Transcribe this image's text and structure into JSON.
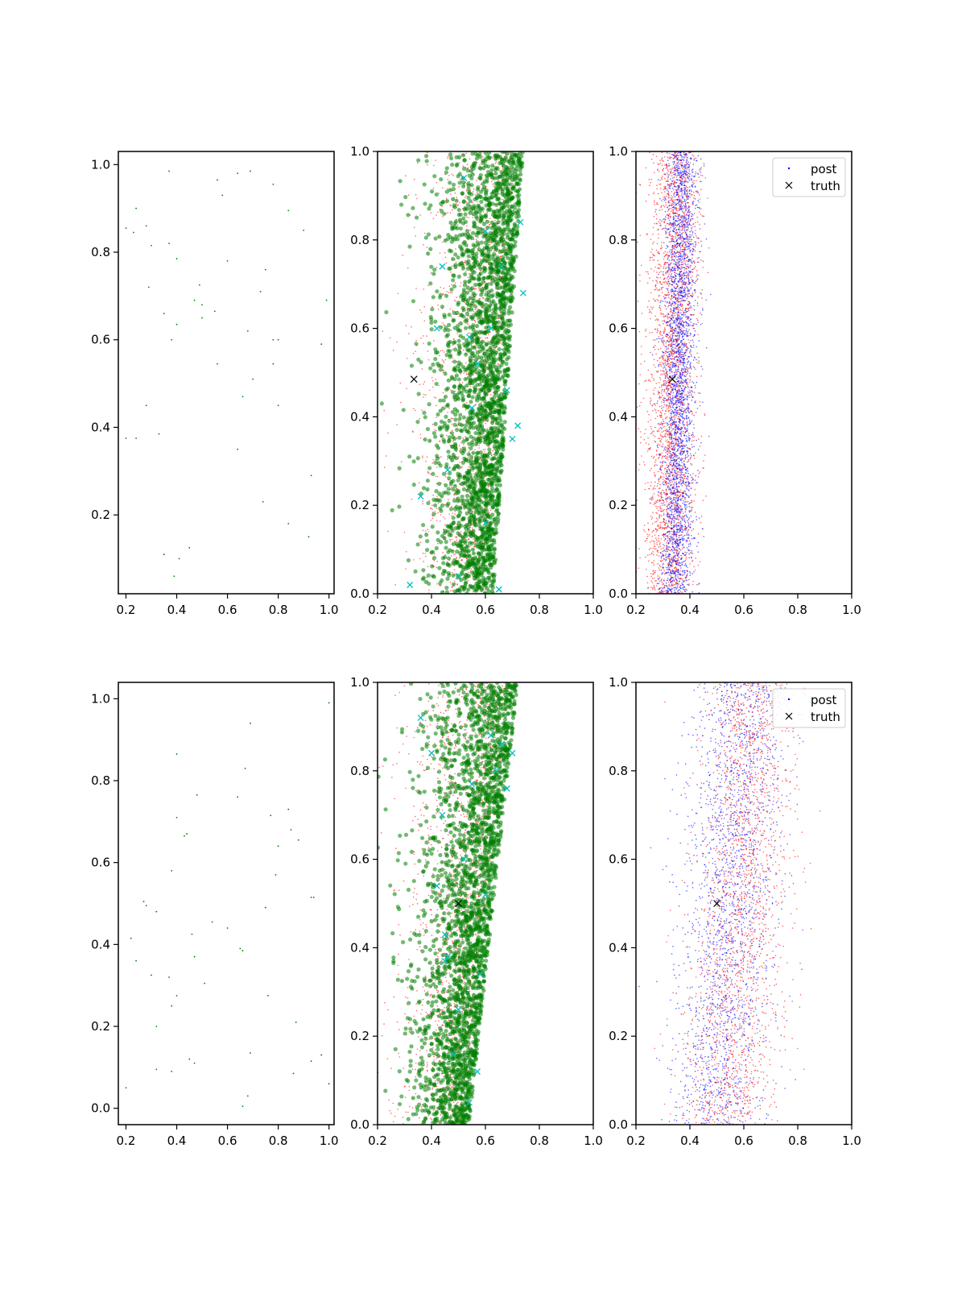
{
  "figure": {
    "background": "#ffffff",
    "colors": {
      "prior": "#008000",
      "samples": "#008000",
      "draws": "#ff0000",
      "post": "#0000ff",
      "obs": "#00bfbf",
      "truth": "#000000"
    }
  },
  "chart_data": [
    {
      "type": "scatter",
      "row": 0,
      "col": 0,
      "xlim": [
        0.17,
        1.02
      ],
      "ylim": [
        0.02,
        1.03
      ],
      "xticks": [
        "0.2",
        "0.4",
        "0.6",
        "0.8",
        "1.0"
      ],
      "yticks": [
        "0.2",
        "0.4",
        "0.6",
        "0.8",
        "1.0"
      ],
      "xtick_values": [
        0.2,
        0.4,
        0.6,
        0.8,
        1.0
      ],
      "ytick_values": [
        0.2,
        0.4,
        0.6,
        0.8,
        1.0
      ],
      "series": [
        {
          "role": "prior",
          "points": [
            [
              0.2,
              0.855
            ],
            [
              0.24,
              0.9
            ],
            [
              0.23,
              0.845
            ],
            [
              0.28,
              0.86
            ],
            [
              0.3,
              0.815
            ],
            [
              0.29,
              0.72
            ],
            [
              0.37,
              0.985
            ],
            [
              0.37,
              0.82
            ],
            [
              0.4,
              0.785
            ],
            [
              0.56,
              0.965
            ],
            [
              0.58,
              0.93
            ],
            [
              0.64,
              0.98
            ],
            [
              0.69,
              0.985
            ],
            [
              0.78,
              0.955
            ],
            [
              0.84,
              0.895
            ],
            [
              0.9,
              0.85
            ],
            [
              0.35,
              0.66
            ],
            [
              0.4,
              0.635
            ],
            [
              0.38,
              0.6
            ],
            [
              0.49,
              0.725
            ],
            [
              0.47,
              0.69
            ],
            [
              0.5,
              0.68
            ],
            [
              0.55,
              0.665
            ],
            [
              0.5,
              0.65
            ],
            [
              0.6,
              0.78
            ],
            [
              0.75,
              0.76
            ],
            [
              0.73,
              0.71
            ],
            [
              0.99,
              0.69
            ],
            [
              0.68,
              0.62
            ],
            [
              0.78,
              0.6
            ],
            [
              0.8,
              0.6
            ],
            [
              0.97,
              0.59
            ],
            [
              0.56,
              0.545
            ],
            [
              0.78,
              0.545
            ],
            [
              0.7,
              0.51
            ],
            [
              0.66,
              0.47
            ],
            [
              0.28,
              0.45
            ],
            [
              0.8,
              0.45
            ],
            [
              0.2,
              0.375
            ],
            [
              0.24,
              0.375
            ],
            [
              0.33,
              0.385
            ],
            [
              0.64,
              0.35
            ],
            [
              0.93,
              0.29
            ],
            [
              0.74,
              0.23
            ],
            [
              0.84,
              0.18
            ],
            [
              0.92,
              0.15
            ],
            [
              0.35,
              0.11
            ],
            [
              0.45,
              0.125
            ],
            [
              0.41,
              0.1
            ],
            [
              0.39,
              0.06
            ]
          ]
        }
      ]
    },
    {
      "type": "scatter",
      "row": 0,
      "col": 1,
      "xlim": [
        0.2,
        1.0
      ],
      "ylim": [
        0.0,
        1.0
      ],
      "xticks": [
        "0.2",
        "0.4",
        "0.6",
        "0.8",
        "1.0"
      ],
      "yticks": [
        "0.0",
        "0.2",
        "0.4",
        "0.6",
        "0.8",
        "1.0"
      ],
      "xtick_values": [
        0.2,
        0.4,
        0.6,
        0.8,
        1.0
      ],
      "ytick_values": [
        0.0,
        0.2,
        0.4,
        0.6,
        0.8,
        1.0
      ],
      "cloud": {
        "n_samples": 2600,
        "n_draws": 1600,
        "center_at_y0": 0.55,
        "center_at_y1": 0.66,
        "spread_at_y0": 0.11,
        "spread_at_y1": 0.14
      },
      "obs_marks": [
        [
          0.32,
          0.02
        ],
        [
          0.36,
          0.22
        ],
        [
          0.42,
          0.6
        ],
        [
          0.44,
          0.74
        ],
        [
          0.46,
          0.28
        ],
        [
          0.5,
          0.04
        ],
        [
          0.52,
          0.94
        ],
        [
          0.54,
          0.58
        ],
        [
          0.57,
          0.52
        ],
        [
          0.6,
          0.16
        ],
        [
          0.62,
          0.6
        ],
        [
          0.65,
          0.01
        ],
        [
          0.68,
          0.46
        ],
        [
          0.7,
          0.35
        ],
        [
          0.72,
          0.38
        ],
        [
          0.73,
          0.84
        ],
        [
          0.74,
          0.68
        ],
        [
          0.6,
          0.82
        ],
        [
          0.55,
          0.42
        ],
        [
          0.66,
          0.74
        ]
      ],
      "truth": [
        0.335,
        0.485
      ]
    },
    {
      "type": "scatter",
      "row": 0,
      "col": 2,
      "xlim": [
        0.2,
        1.0
      ],
      "ylim": [
        0.0,
        1.0
      ],
      "xticks": [
        "0.2",
        "0.4",
        "0.6",
        "0.8",
        "1.0"
      ],
      "yticks": [
        "0.0",
        "0.2",
        "0.4",
        "0.6",
        "0.8",
        "1.0"
      ],
      "xtick_values": [
        0.2,
        0.4,
        0.6,
        0.8,
        1.0
      ],
      "ytick_values": [
        0.0,
        0.2,
        0.4,
        0.6,
        0.8,
        1.0
      ],
      "cloud": {
        "n_post": 2800,
        "n_draws": 2800,
        "post_center_at_y0": 0.35,
        "post_center_at_y1": 0.37,
        "post_spread": 0.03,
        "draws_center_at_y0": 0.32,
        "draws_center_at_y1": 0.35,
        "draws_spread": 0.045
      },
      "truth": [
        0.335,
        0.485
      ],
      "legend": {
        "position": "top-right",
        "entries": [
          "post",
          "truth"
        ]
      }
    },
    {
      "type": "scatter",
      "row": 1,
      "col": 0,
      "xlim": [
        0.17,
        1.02
      ],
      "ylim": [
        -0.04,
        1.04
      ],
      "xticks": [
        "0.2",
        "0.4",
        "0.6",
        "0.8",
        "1.0"
      ],
      "yticks": [
        "0.0",
        "0.2",
        "0.4",
        "0.6",
        "0.8",
        "1.0"
      ],
      "xtick_values": [
        0.2,
        0.4,
        0.6,
        0.8,
        1.0
      ],
      "ytick_values": [
        0.0,
        0.2,
        0.4,
        0.6,
        0.8,
        1.0
      ],
      "series": [
        {
          "role": "prior",
          "points": [
            [
              1.0,
              0.99
            ],
            [
              0.69,
              0.94
            ],
            [
              0.4,
              0.865
            ],
            [
              0.67,
              0.83
            ],
            [
              0.64,
              0.76
            ],
            [
              0.48,
              0.765
            ],
            [
              0.4,
              0.71
            ],
            [
              0.77,
              0.715
            ],
            [
              0.84,
              0.73
            ],
            [
              0.43,
              0.665
            ],
            [
              0.44,
              0.67
            ],
            [
              0.85,
              0.68
            ],
            [
              0.88,
              0.655
            ],
            [
              0.8,
              0.64
            ],
            [
              0.38,
              0.58
            ],
            [
              0.79,
              0.57
            ],
            [
              0.27,
              0.505
            ],
            [
              0.28,
              0.495
            ],
            [
              0.32,
              0.48
            ],
            [
              0.54,
              0.455
            ],
            [
              0.6,
              0.44
            ],
            [
              0.75,
              0.49
            ],
            [
              0.93,
              0.515
            ],
            [
              0.94,
              0.515
            ],
            [
              0.22,
              0.415
            ],
            [
              0.46,
              0.425
            ],
            [
              0.65,
              0.39
            ],
            [
              0.66,
              0.385
            ],
            [
              0.24,
              0.36
            ],
            [
              0.47,
              0.37
            ],
            [
              0.3,
              0.325
            ],
            [
              0.37,
              0.32
            ],
            [
              0.51,
              0.305
            ],
            [
              0.4,
              0.275
            ],
            [
              0.76,
              0.275
            ],
            [
              0.38,
              0.25
            ],
            [
              0.32,
              0.2
            ],
            [
              0.87,
              0.21
            ],
            [
              0.45,
              0.12
            ],
            [
              0.47,
              0.11
            ],
            [
              0.69,
              0.135
            ],
            [
              0.93,
              0.115
            ],
            [
              0.97,
              0.13
            ],
            [
              0.32,
              0.095
            ],
            [
              0.38,
              0.09
            ],
            [
              0.86,
              0.085
            ],
            [
              0.2,
              0.05
            ],
            [
              0.66,
              0.005
            ],
            [
              0.68,
              0.03
            ],
            [
              1.0,
              0.06
            ]
          ]
        }
      ]
    },
    {
      "type": "scatter",
      "row": 1,
      "col": 1,
      "xlim": [
        0.2,
        1.0
      ],
      "ylim": [
        0.0,
        1.0
      ],
      "xticks": [
        "0.2",
        "0.4",
        "0.6",
        "0.8",
        "1.0"
      ],
      "yticks": [
        "0.0",
        "0.2",
        "0.4",
        "0.6",
        "0.8",
        "1.0"
      ],
      "xtick_values": [
        0.2,
        0.4,
        0.6,
        0.8,
        1.0
      ],
      "ytick_values": [
        0.0,
        0.2,
        0.4,
        0.6,
        0.8,
        1.0
      ],
      "cloud": {
        "n_samples": 2600,
        "n_draws": 1600,
        "center_at_y0": 0.46,
        "center_at_y1": 0.64,
        "spread_at_y0": 0.1,
        "spread_at_y1": 0.15
      },
      "obs_marks": [
        [
          0.36,
          0.92
        ],
        [
          0.4,
          0.84
        ],
        [
          0.44,
          0.7
        ],
        [
          0.42,
          0.54
        ],
        [
          0.45,
          0.43
        ],
        [
          0.46,
          0.38
        ],
        [
          0.45,
          0.37
        ],
        [
          0.5,
          0.26
        ],
        [
          0.52,
          0.6
        ],
        [
          0.55,
          0.77
        ],
        [
          0.58,
          0.34
        ],
        [
          0.6,
          0.52
        ],
        [
          0.62,
          0.88
        ],
        [
          0.64,
          0.8
        ],
        [
          0.66,
          0.86
        ],
        [
          0.68,
          0.76
        ],
        [
          0.7,
          0.84
        ],
        [
          0.54,
          0.05
        ],
        [
          0.57,
          0.12
        ],
        [
          0.48,
          0.16
        ]
      ],
      "truth": [
        0.5,
        0.5
      ]
    },
    {
      "type": "scatter",
      "row": 1,
      "col": 2,
      "xlim": [
        0.2,
        1.0
      ],
      "ylim": [
        0.0,
        1.0
      ],
      "xticks": [
        "0.2",
        "0.4",
        "0.6",
        "0.8",
        "1.0"
      ],
      "yticks": [
        "0.0",
        "0.2",
        "0.4",
        "0.6",
        "0.8",
        "1.0"
      ],
      "xtick_values": [
        0.2,
        0.4,
        0.6,
        0.8,
        1.0
      ],
      "ytick_values": [
        0.0,
        0.2,
        0.4,
        0.6,
        0.8,
        1.0
      ],
      "cloud": {
        "n_post": 2000,
        "n_draws": 2000,
        "post_center_at_y0": 0.5,
        "post_center_at_y1": 0.6,
        "post_spread": 0.09,
        "draws_center_at_y0": 0.53,
        "draws_center_at_y1": 0.64,
        "draws_spread": 0.09
      },
      "truth": [
        0.5,
        0.5
      ],
      "legend": {
        "position": "top-right",
        "entries": [
          "post",
          "truth"
        ]
      }
    }
  ]
}
